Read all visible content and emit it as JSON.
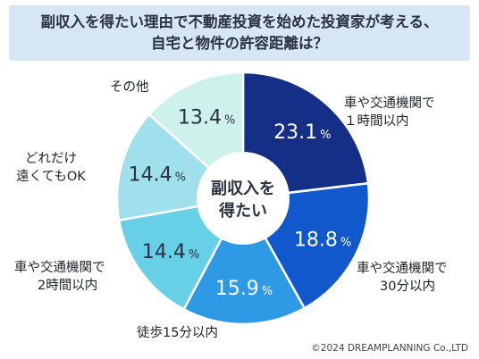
{
  "header": {
    "title_line1": "副収入を得たい理由で不動産投資を始めた投資家が考える、",
    "title_line2": "自宅と物件の許容距離は？"
  },
  "footer": {
    "copyright": "©2024 DREAMPLANNING Co.,LTD"
  },
  "chart_data": {
    "type": "pie",
    "variant": "donut",
    "center_label": [
      "副収入を",
      "得たい"
    ],
    "unit": "%",
    "slices": [
      {
        "label": [
          "車や交通機関で",
          "１時間以内"
        ],
        "value": 23.1,
        "color": "#162f86",
        "text_color": "#ffffff"
      },
      {
        "label": [
          "車や交通機関で",
          "30分以内"
        ],
        "value": 18.8,
        "color": "#1158cc",
        "text_color": "#ffffff"
      },
      {
        "label": [
          "徒歩15分以内"
        ],
        "value": 15.9,
        "color": "#2e9ae6",
        "text_color": "#ffffff"
      },
      {
        "label": [
          "車や交通機関で",
          "2時間以内"
        ],
        "value": 14.4,
        "color": "#68d0e6",
        "text_color": "#2a3140"
      },
      {
        "label": [
          "どれだけ",
          "遠くてもOK"
        ],
        "value": 14.4,
        "color": "#9fe0ec",
        "text_color": "#2a3140"
      },
      {
        "label": [
          "その他"
        ],
        "value": 13.4,
        "color": "#cdf1eb",
        "text_color": "#2a3140"
      }
    ]
  }
}
